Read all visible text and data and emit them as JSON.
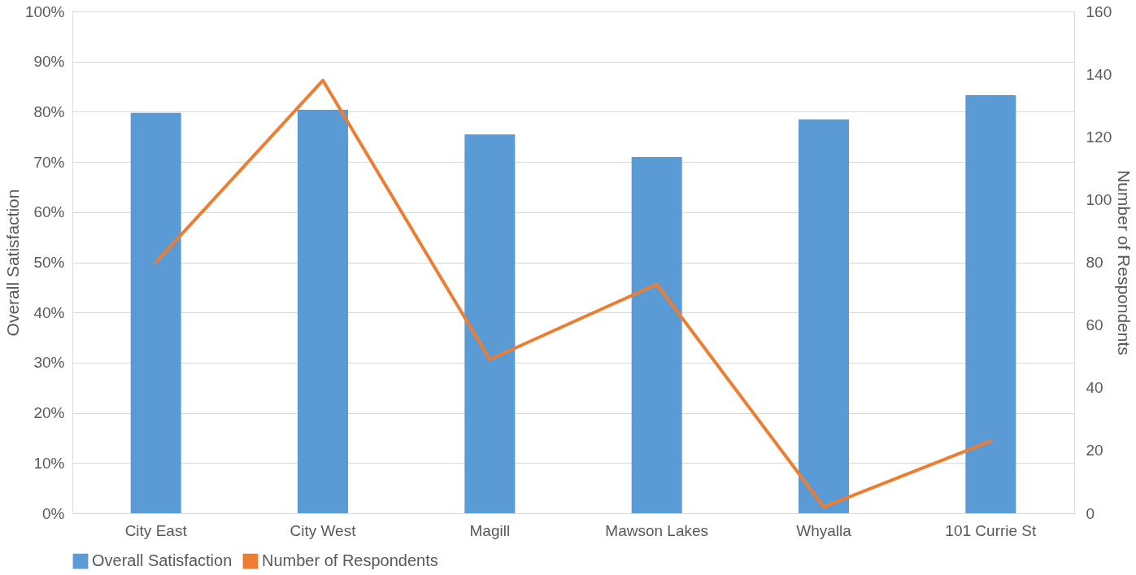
{
  "chart_data": {
    "type": "bar",
    "categories": [
      "City East",
      "City West",
      "Magill",
      "Mawson Lakes",
      "Whyalla",
      "101 Currie St"
    ],
    "series": [
      {
        "name": "Overall Satisfaction",
        "color": "#5b9bd5",
        "values": [
          79.8,
          80.4,
          75.5,
          71,
          78.5,
          83.3
        ]
      },
      {
        "name": "Number of Respondents",
        "type": "line",
        "axis": "y2",
        "color": "#ed7d31",
        "values": [
          80,
          138,
          49,
          73,
          2,
          23
        ]
      }
    ],
    "ylabel": "Overall Satisfaction",
    "y2label": "Number of Respondents",
    "ylim": [
      0,
      100
    ],
    "yticks": [
      {
        "value": 0,
        "label": "0%"
      },
      {
        "value": 10,
        "label": "10%"
      },
      {
        "value": 20,
        "label": "20%"
      },
      {
        "value": 30,
        "label": "30%"
      },
      {
        "value": 40,
        "label": "40%"
      },
      {
        "value": 50,
        "label": "50%"
      },
      {
        "value": 60,
        "label": "60%"
      },
      {
        "value": 70,
        "label": "70%"
      },
      {
        "value": 80,
        "label": "80%"
      },
      {
        "value": 90,
        "label": "90%"
      },
      {
        "value": 100,
        "label": "100%"
      }
    ],
    "y2lim": [
      0,
      160
    ],
    "y2ticks": [
      0,
      20,
      40,
      60,
      80,
      100,
      120,
      140,
      160
    ],
    "grid": "y",
    "legend": "bottom"
  }
}
